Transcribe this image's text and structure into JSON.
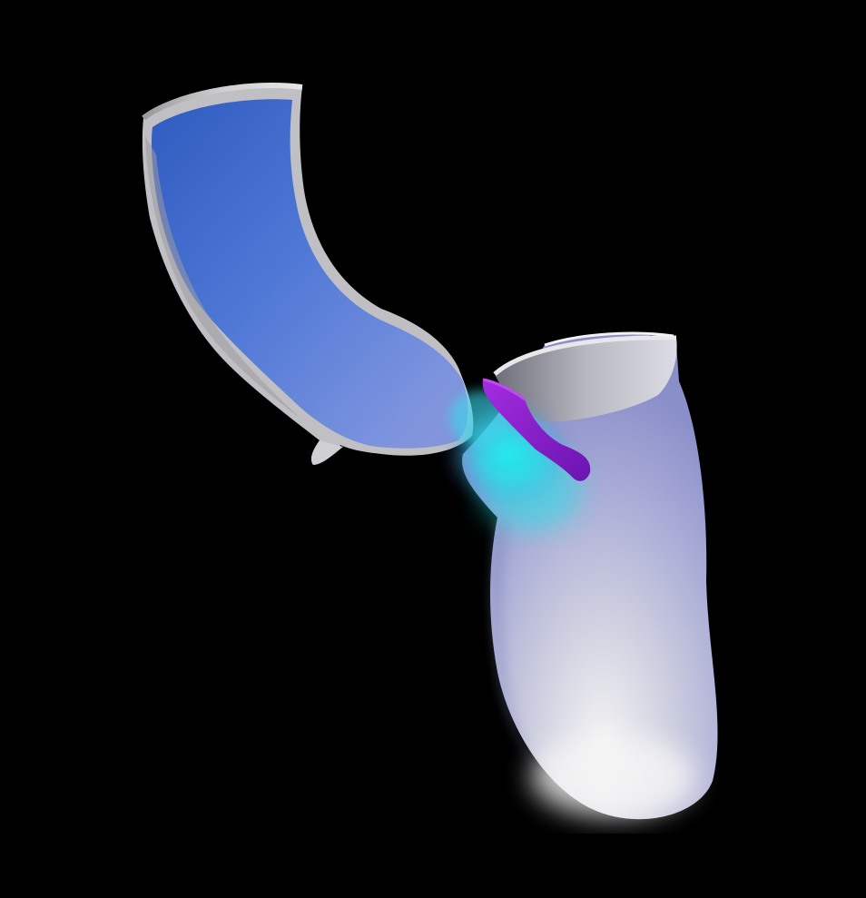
{
  "viewport": {
    "background": "#000000"
  },
  "scene": {
    "subject": "vessel-surface-render",
    "colors": {
      "surface": "#d9d9e6",
      "surface_shadow": "#8c8c99",
      "flow_low": "#3f6fd0",
      "flow_mid": "#6f8ae0",
      "flow_high": "#19e6e6",
      "valve": "#8a1fd0"
    }
  }
}
